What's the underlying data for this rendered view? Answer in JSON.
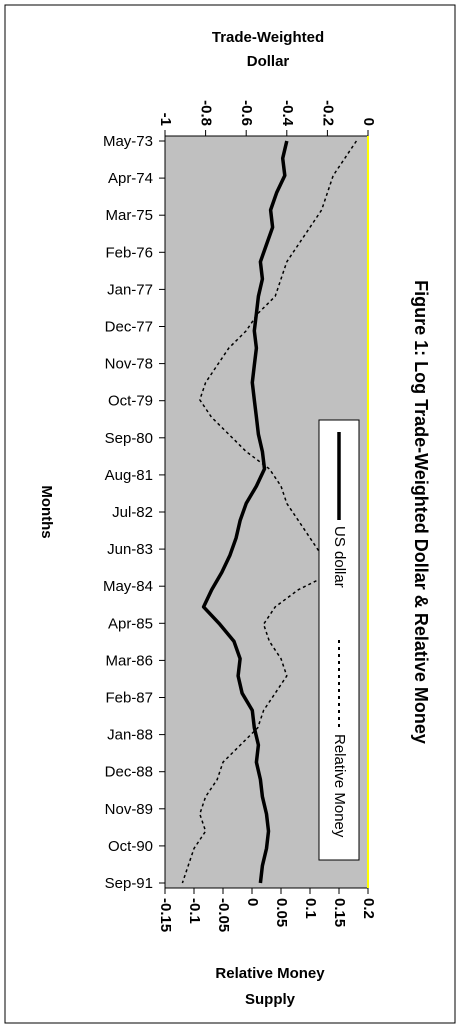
{
  "chart_data": {
    "type": "line",
    "title": "Figure 1: Log Trade-Weighted Dollar & Relative Money",
    "axis_top": {
      "label_line1": "Trade-Weighted",
      "label_line2": "Dollar",
      "range": [
        -1,
        0
      ],
      "ticks": [
        "-1",
        "-0.8",
        "-0.6",
        "-0.4",
        "-0.2",
        "0"
      ]
    },
    "axis_bottom": {
      "label_line1": "Relative Money",
      "label_line2": "Supply",
      "range": [
        -0.15,
        0.2
      ],
      "ticks": [
        "-0.15",
        "-0.1",
        "-0.05",
        "0",
        "0.05",
        "0.1",
        "0.15",
        "0.2"
      ]
    },
    "axis_months": {
      "label": "Months",
      "ticks": [
        "May-73",
        "Apr-74",
        "Mar-75",
        "Feb-76",
        "Jan-77",
        "Dec-77",
        "Nov-78",
        "Oct-79",
        "Sep-80",
        "Aug-81",
        "Jul-82",
        "Jun-83",
        "May-84",
        "Apr-85",
        "Mar-86",
        "Feb-87",
        "Jan-88",
        "Dec-88",
        "Nov-89",
        "Oct-90",
        "Sep-91"
      ]
    },
    "legend_position": "bottom-right",
    "background_color": "#c0c0c0",
    "series": [
      {
        "name": "US dollar",
        "axis": "top",
        "color": "#000000",
        "values": [
          -0.4,
          -0.42,
          -0.41,
          -0.45,
          -0.48,
          -0.47,
          -0.5,
          -0.53,
          -0.52,
          -0.54,
          -0.55,
          -0.56,
          -0.55,
          -0.56,
          -0.57,
          -0.56,
          -0.55,
          -0.54,
          -0.52,
          -0.51,
          -0.55,
          -0.6,
          -0.63,
          -0.65,
          -0.68,
          -0.72,
          -0.77,
          -0.81,
          -0.73,
          -0.66,
          -0.63,
          -0.64,
          -0.62,
          -0.57,
          -0.56,
          -0.54,
          -0.55,
          -0.53,
          -0.52,
          -0.5,
          -0.49,
          -0.5,
          -0.52,
          -0.53
        ]
      },
      {
        "name": "Relative Money",
        "axis": "bottom",
        "color": "#000000",
        "values": [
          0.18,
          0.16,
          0.14,
          0.13,
          0.12,
          0.1,
          0.08,
          0.06,
          0.05,
          0.04,
          0.01,
          -0.01,
          -0.04,
          -0.06,
          -0.08,
          -0.09,
          -0.07,
          -0.04,
          -0.01,
          0.03,
          0.05,
          0.06,
          0.08,
          0.1,
          0.12,
          0.14,
          0.08,
          0.04,
          0.02,
          0.03,
          0.05,
          0.06,
          0.04,
          0.02,
          0.01,
          -0.02,
          -0.05,
          -0.06,
          -0.08,
          -0.09,
          -0.08,
          -0.1,
          -0.11,
          -0.12
        ]
      }
    ]
  }
}
